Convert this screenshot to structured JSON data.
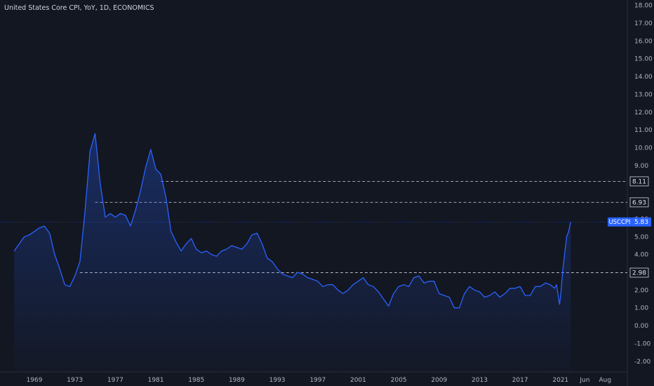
{
  "chart_data": {
    "type": "area",
    "title": "United States Core CPI, YoY, 1D, ECONOMICS",
    "x_tick_labels": [
      "1969",
      "1973",
      "1977",
      "1981",
      "1985",
      "1989",
      "1993",
      "1997",
      "2001",
      "2005",
      "2009",
      "2013",
      "2017",
      "2021",
      "Jun",
      "Aug"
    ],
    "y_tick_labels": [
      "18.00",
      "17.00",
      "16.00",
      "15.00",
      "14.00",
      "13.00",
      "12.00",
      "11.00",
      "10.00",
      "9.00",
      "8.00",
      "7.00",
      "6.00",
      "5.00",
      "4.00",
      "3.00",
      "2.00",
      "1.00",
      "0.00",
      "-1.00",
      "-2.00"
    ],
    "ylim": [
      -2.6,
      18.3
    ],
    "xlim": [
      1965.6,
      2027.6
    ],
    "grid": false,
    "series": [
      {
        "name": "USCCPI",
        "color": "#2962ff",
        "last_value": "5.83",
        "x": [
          1967.0,
          1967.5,
          1968.0,
          1968.5,
          1969.0,
          1969.5,
          1970.0,
          1970.5,
          1971.0,
          1971.5,
          1972.0,
          1972.5,
          1973.0,
          1973.5,
          1974.0,
          1974.5,
          1975.0,
          1975.5,
          1976.0,
          1976.5,
          1977.0,
          1977.5,
          1978.0,
          1978.5,
          1979.0,
          1979.5,
          1980.0,
          1980.5,
          1981.0,
          1981.5,
          1982.0,
          1982.5,
          1983.0,
          1983.5,
          1984.0,
          1984.5,
          1985.0,
          1985.5,
          1986.0,
          1986.5,
          1987.0,
          1987.5,
          1988.0,
          1988.5,
          1989.0,
          1989.5,
          1990.0,
          1990.5,
          1991.0,
          1991.5,
          1992.0,
          1992.5,
          1993.0,
          1993.5,
          1994.0,
          1994.5,
          1995.0,
          1995.5,
          1996.0,
          1996.5,
          1997.0,
          1997.5,
          1998.0,
          1998.5,
          1999.0,
          1999.5,
          2000.0,
          2000.5,
          2001.0,
          2001.5,
          2002.0,
          2002.5,
          2003.0,
          2003.5,
          2004.0,
          2004.5,
          2005.0,
          2005.5,
          2006.0,
          2006.5,
          2007.0,
          2007.5,
          2008.0,
          2008.5,
          2009.0,
          2009.5,
          2010.0,
          2010.5,
          2011.0,
          2011.5,
          2012.0,
          2012.5,
          2013.0,
          2013.5,
          2014.0,
          2014.5,
          2015.0,
          2015.5,
          2016.0,
          2016.5,
          2017.0,
          2017.5,
          2018.0,
          2018.5,
          2019.0,
          2019.5,
          2020.0,
          2020.4,
          2020.6,
          2020.9,
          2021.0,
          2021.2,
          2021.4,
          2021.6,
          2021.8,
          2022.0
        ],
        "y": [
          4.2,
          4.6,
          5.0,
          5.1,
          5.3,
          5.5,
          5.6,
          5.2,
          4.0,
          3.2,
          2.3,
          2.2,
          2.8,
          3.6,
          6.4,
          9.8,
          10.8,
          8.0,
          6.1,
          6.3,
          6.1,
          6.3,
          6.2,
          5.6,
          6.5,
          7.6,
          8.9,
          9.9,
          8.8,
          8.5,
          7.2,
          5.3,
          4.7,
          4.2,
          4.6,
          4.9,
          4.3,
          4.1,
          4.2,
          4.0,
          3.9,
          4.2,
          4.3,
          4.5,
          4.4,
          4.3,
          4.6,
          5.1,
          5.2,
          4.6,
          3.8,
          3.6,
          3.2,
          2.9,
          2.8,
          2.7,
          3.0,
          2.9,
          2.7,
          2.6,
          2.5,
          2.2,
          2.3,
          2.3,
          2.0,
          1.8,
          2.0,
          2.3,
          2.5,
          2.7,
          2.3,
          2.2,
          1.9,
          1.5,
          1.1,
          1.8,
          2.2,
          2.3,
          2.2,
          2.7,
          2.8,
          2.4,
          2.5,
          2.5,
          1.8,
          1.7,
          1.6,
          1.0,
          1.0,
          1.8,
          2.2,
          2.0,
          1.9,
          1.6,
          1.7,
          1.9,
          1.6,
          1.8,
          2.1,
          2.1,
          2.2,
          1.7,
          1.7,
          2.2,
          2.2,
          2.4,
          2.3,
          2.1,
          2.3,
          1.2,
          1.6,
          3.0,
          4.0,
          5.0,
          5.3,
          5.83
        ]
      }
    ],
    "reference_lines": [
      {
        "value": 8.11,
        "label": "8.11",
        "x_start": 1981.5
      },
      {
        "value": 6.93,
        "label": "6.93",
        "x_start": 1975.0
      },
      {
        "value": 2.98,
        "label": "2.98",
        "x_start": 1973.5
      }
    ],
    "legend": "right-axis-badge"
  }
}
